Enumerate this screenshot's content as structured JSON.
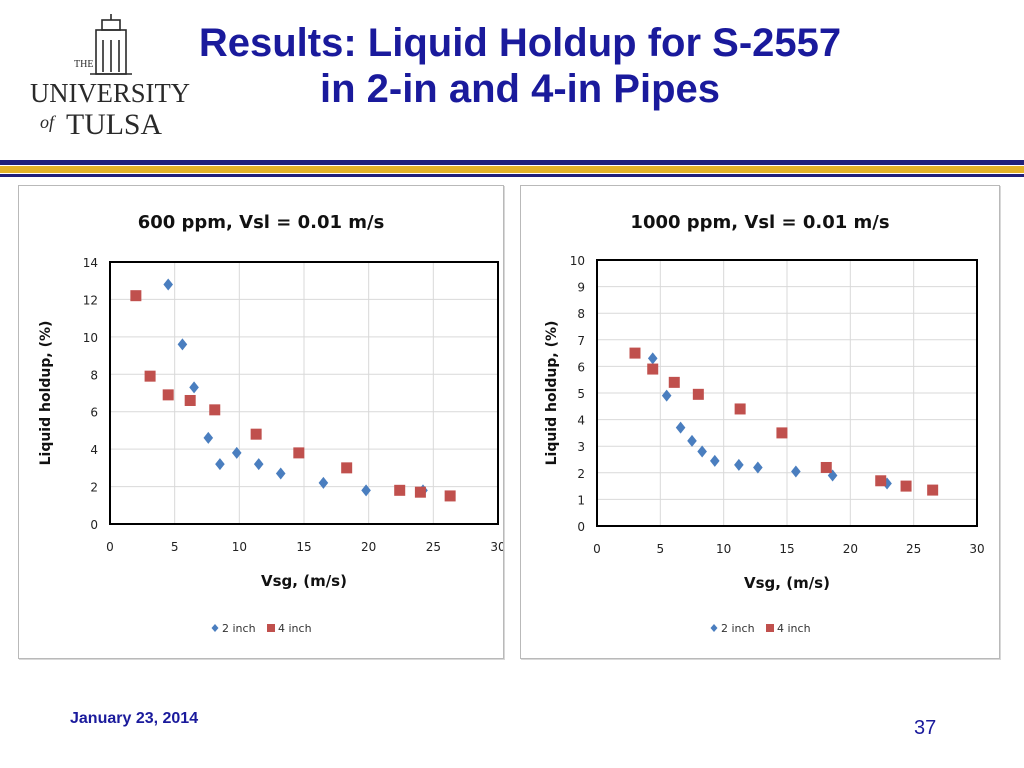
{
  "slide": {
    "title_line1": "Results: Liquid Holdup for S-2557",
    "title_line2": "in 2-in and 4-in Pipes",
    "date": "January 23, 2014",
    "page_number": "37"
  },
  "logo": {
    "the": "THE",
    "university": "UNIVERSITY",
    "of": "of",
    "tulsa": "TULSA"
  },
  "colors": {
    "title": "#1a1a9c",
    "rule_navy": "#1f1f7a",
    "rule_gold": "#e2b227",
    "series_2inch": "#4a7ebf",
    "series_4inch": "#c0504d"
  },
  "chart_data": [
    {
      "type": "scatter",
      "title": "600 ppm, Vsl = 0.01 m/s",
      "xlabel": "Vsg, (m/s)",
      "ylabel": "Liquid holdup, (%)",
      "xlim": [
        0,
        30
      ],
      "ylim": [
        0,
        14
      ],
      "xticks": [
        0,
        5,
        10,
        15,
        20,
        25,
        30
      ],
      "yticks": [
        0,
        2,
        4,
        6,
        8,
        10,
        12,
        14
      ],
      "grid": true,
      "legend": "bottom",
      "series": [
        {
          "name": "2 inch",
          "marker": "diamond",
          "points": [
            [
              4.5,
              12.8
            ],
            [
              5.6,
              9.6
            ],
            [
              6.5,
              7.3
            ],
            [
              7.6,
              4.6
            ],
            [
              8.5,
              3.2
            ],
            [
              9.8,
              3.8
            ],
            [
              11.5,
              3.2
            ],
            [
              13.2,
              2.7
            ],
            [
              16.5,
              2.2
            ],
            [
              19.8,
              1.8
            ],
            [
              24.2,
              1.8
            ]
          ]
        },
        {
          "name": "4 inch",
          "marker": "square",
          "points": [
            [
              2.0,
              12.2
            ],
            [
              3.1,
              7.9
            ],
            [
              4.5,
              6.9
            ],
            [
              6.2,
              6.6
            ],
            [
              8.1,
              6.1
            ],
            [
              11.3,
              4.8
            ],
            [
              14.6,
              3.8
            ],
            [
              18.3,
              3.0
            ],
            [
              22.4,
              1.8
            ],
            [
              24.0,
              1.7
            ],
            [
              26.3,
              1.5
            ]
          ]
        }
      ]
    },
    {
      "type": "scatter",
      "title": "1000 ppm, Vsl = 0.01 m/s",
      "xlabel": "Vsg, (m/s)",
      "ylabel": "Liquid holdup, (%)",
      "xlim": [
        0,
        30
      ],
      "ylim": [
        0,
        10
      ],
      "xticks": [
        0,
        5,
        10,
        15,
        20,
        25,
        30
      ],
      "yticks": [
        0,
        1,
        2,
        3,
        4,
        5,
        6,
        7,
        8,
        9,
        10
      ],
      "grid": true,
      "legend": "bottom",
      "series": [
        {
          "name": "2 inch",
          "marker": "diamond",
          "points": [
            [
              4.4,
              6.3
            ],
            [
              5.5,
              4.9
            ],
            [
              6.6,
              3.7
            ],
            [
              7.5,
              3.2
            ],
            [
              8.3,
              2.8
            ],
            [
              9.3,
              2.45
            ],
            [
              11.2,
              2.3
            ],
            [
              12.7,
              2.2
            ],
            [
              15.7,
              2.05
            ],
            [
              18.6,
              1.9
            ],
            [
              22.9,
              1.6
            ]
          ]
        },
        {
          "name": "4 inch",
          "marker": "square",
          "points": [
            [
              3.0,
              6.5
            ],
            [
              4.4,
              5.9
            ],
            [
              6.1,
              5.4
            ],
            [
              8.0,
              4.95
            ],
            [
              11.3,
              4.4
            ],
            [
              14.6,
              3.5
            ],
            [
              18.1,
              2.2
            ],
            [
              22.4,
              1.7
            ],
            [
              24.4,
              1.5
            ],
            [
              26.5,
              1.35
            ]
          ]
        }
      ]
    }
  ]
}
